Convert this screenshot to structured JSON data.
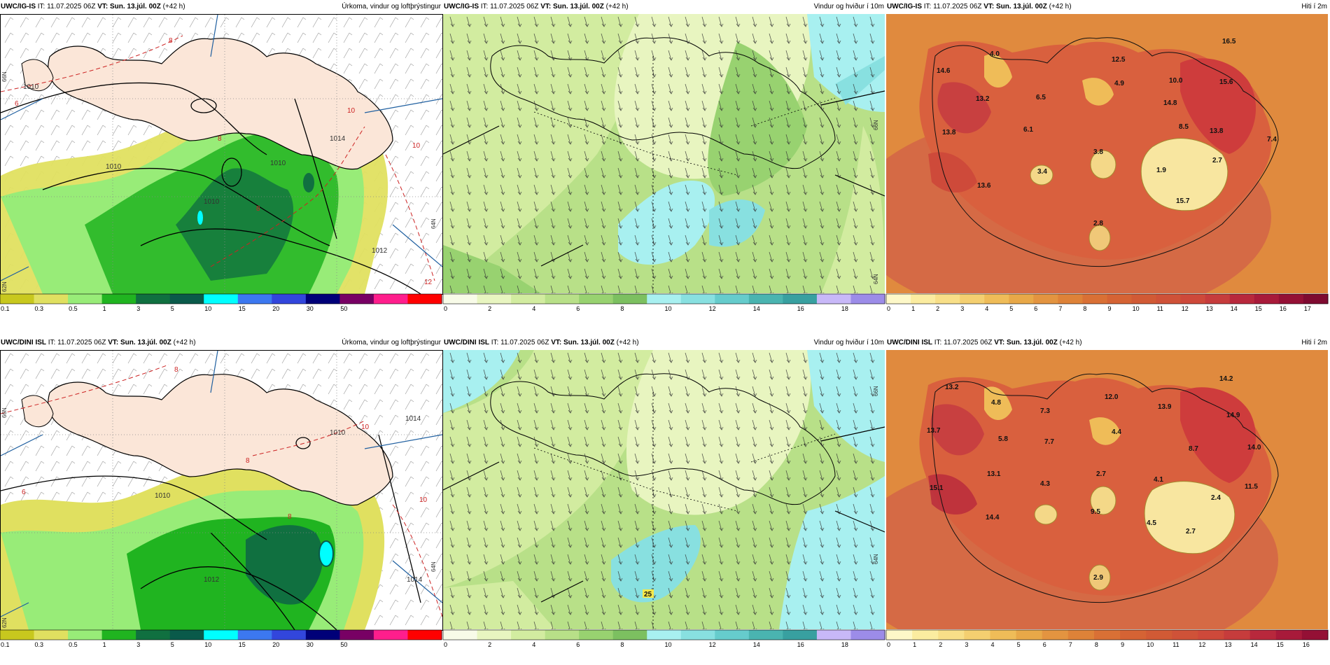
{
  "panels": [
    {
      "id": "igis-precip",
      "model": "UWC/IG-IS",
      "it_label": "IT:",
      "it_value": "11.07.2025 06Z",
      "vt_label": "VT:",
      "vt_value": "Sun. 13.júl. 00Z",
      "lead": "(+42 h)",
      "title": "Úrkoma, vindur og loftþrýstingur",
      "colorbar": {
        "colors": [
          "#c8c81e",
          "#e0e060",
          "#98ec78",
          "#20b420",
          "#107040",
          "#0a5a4a",
          "#00ffff",
          "#3c78f0",
          "#3246dc",
          "#000078",
          "#780064",
          "#ff1e8c",
          "#ff0000"
        ],
        "labels": [
          "0.1",
          "0.3",
          "0.5",
          "1",
          "3",
          "5",
          "10",
          "15",
          "20",
          "30",
          "50"
        ]
      },
      "isobar_labels": [
        "1010",
        "1010",
        "1010",
        "1010",
        "1012",
        "1014"
      ],
      "isotherm_labels": [
        "6",
        "8",
        "10",
        "8",
        "8",
        "10",
        "12"
      ],
      "lat_labels": [
        "66N",
        "64N",
        "62N"
      ]
    },
    {
      "id": "igis-wind",
      "model": "UWC/IG-IS",
      "it_label": "IT:",
      "it_value": "11.07.2025 06Z",
      "vt_label": "VT:",
      "vt_value": "Sun. 13.júl. 00Z",
      "lead": "(+42 h)",
      "title": "Vindur og hviður í 10m",
      "colorbar": {
        "colors": [
          "#f8fbe8",
          "#e8f5c0",
          "#d2eca0",
          "#b8e088",
          "#98d270",
          "#7cc060",
          "#a8f0f0",
          "#88e0e0",
          "#66cccc",
          "#4ab4b0",
          "#38a0a0",
          "#c8b8f8",
          "#9c8ce8"
        ],
        "labels": [
          "0",
          "2",
          "4",
          "6",
          "8",
          "10",
          "12",
          "14",
          "16",
          "18"
        ]
      },
      "lat_labels": [
        "66N",
        "64N"
      ]
    },
    {
      "id": "igis-temp",
      "model": "UWC/IG-IS",
      "it_label": "IT:",
      "it_value": "11.07.2025 06Z",
      "vt_label": "VT:",
      "vt_value": "Sun. 13.júl. 00Z",
      "lead": "(+42 h)",
      "title": "Hiti í 2m",
      "colorbar": {
        "colors": [
          "#fdf8c8",
          "#fbeca0",
          "#f8df88",
          "#f4cf70",
          "#efbc58",
          "#e8a848",
          "#e39440",
          "#de8238",
          "#d97035",
          "#d56334",
          "#d15a35",
          "#cf5238",
          "#ce493a",
          "#c63c3c",
          "#b8283c",
          "#a81a3a",
          "#941035",
          "#7e0a30"
        ],
        "labels": [
          "0",
          "1",
          "2",
          "3",
          "4",
          "5",
          "6",
          "7",
          "8",
          "9",
          "10",
          "11",
          "12",
          "13",
          "14",
          "15",
          "16",
          "17"
        ]
      },
      "value_labels": [
        "16.5",
        "14.6",
        "4.0",
        "12.5",
        "10.0",
        "15.6",
        "13.2",
        "6.5",
        "4.9",
        "14.8",
        "13.8",
        "7.4",
        "6.1",
        "3.8",
        "8.5",
        "13.8",
        "3.4",
        "2.7",
        "1.9",
        "13.6",
        "15.7",
        "2.8"
      ]
    },
    {
      "id": "dini-precip",
      "model": "UWC/DINI ISL",
      "it_label": "IT:",
      "it_value": "11.07.2025 06Z",
      "vt_label": "VT:",
      "vt_value": "Sun. 13.júl. 00Z",
      "lead": "(+42 h)",
      "title": "Úrkoma, vindur og loftþrýstingur",
      "colorbar": {
        "colors": [
          "#c8c81e",
          "#e0e060",
          "#98ec78",
          "#20b420",
          "#107040",
          "#0a5a4a",
          "#00ffff",
          "#3c78f0",
          "#3246dc",
          "#000078",
          "#780064",
          "#ff1e8c",
          "#ff0000"
        ],
        "labels": [
          "0.1",
          "0.3",
          "0.5",
          "1",
          "3",
          "5",
          "10",
          "15",
          "20",
          "30",
          "50"
        ]
      },
      "isobar_labels": [
        "1010",
        "1010",
        "1014",
        "1014",
        "1012"
      ],
      "isotherm_labels": [
        "6",
        "8",
        "10",
        "8",
        "8",
        "10"
      ],
      "lat_labels": [
        "66N",
        "64N",
        "62N"
      ]
    },
    {
      "id": "dini-wind",
      "model": "UWC/DINI ISL",
      "it_label": "IT:",
      "it_value": "11.07.2025 06Z",
      "vt_label": "VT:",
      "vt_value": "Sun. 13.júl. 00Z",
      "lead": "(+42 h)",
      "title": "Vindur og hviður í 10m",
      "colorbar": {
        "colors": [
          "#f8fbe8",
          "#e8f5c0",
          "#d2eca0",
          "#b8e088",
          "#98d270",
          "#7cc060",
          "#a8f0f0",
          "#88e0e0",
          "#66cccc",
          "#4ab4b0",
          "#38a0a0",
          "#c8b8f8",
          "#9c8ce8"
        ],
        "labels": [
          "0",
          "2",
          "4",
          "6",
          "8",
          "10",
          "12",
          "14",
          "16",
          "18"
        ]
      },
      "gust_label": "25",
      "lat_labels": [
        "66N",
        "64N"
      ]
    },
    {
      "id": "dini-temp",
      "model": "UWC/DINI ISL",
      "it_label": "IT:",
      "it_value": "11.07.2025 06Z",
      "vt_label": "VT:",
      "vt_value": "Sun. 13.júl. 00Z",
      "lead": "(+42 h)",
      "title": "Hiti í 2m",
      "colorbar": {
        "colors": [
          "#fdf8c8",
          "#fbeca0",
          "#f8df88",
          "#f4cf70",
          "#efbc58",
          "#e8a848",
          "#e39440",
          "#de8238",
          "#d97035",
          "#d56334",
          "#d15a35",
          "#cf5238",
          "#ce493a",
          "#c63c3c",
          "#b8283c",
          "#a81a3a",
          "#941035"
        ],
        "labels": [
          "0",
          "1",
          "2",
          "3",
          "4",
          "5",
          "6",
          "7",
          "8",
          "9",
          "10",
          "11",
          "12",
          "13",
          "14",
          "15",
          "16"
        ]
      },
      "value_labels": [
        "13.2",
        "14.2",
        "4.8",
        "12.0",
        "7.3",
        "13.9",
        "14.9",
        "13.7",
        "5.8",
        "7.7",
        "4.4",
        "8.7",
        "14.0",
        "15.1",
        "13.1",
        "4.3",
        "2.7",
        "4.1",
        "11.5",
        "2.4",
        "14.4",
        "9.5",
        "4.5",
        "2.7",
        "2.9"
      ]
    }
  ]
}
